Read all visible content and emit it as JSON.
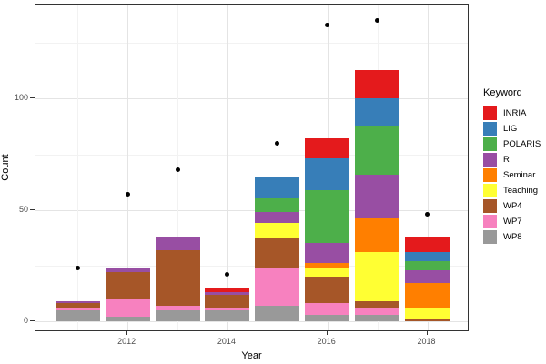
{
  "axes": {
    "x_title": "Year",
    "y_title": "Count"
  },
  "legend": {
    "title": "Keyword",
    "items": [
      {
        "label": "INRIA",
        "color": "#E41A1C"
      },
      {
        "label": "LIG",
        "color": "#377EB8"
      },
      {
        "label": "POLARIS",
        "color": "#4DAF4A"
      },
      {
        "label": "R",
        "color": "#984EA3"
      },
      {
        "label": "Seminar",
        "color": "#FF7F00"
      },
      {
        "label": "Teaching",
        "color": "#FFFF33"
      },
      {
        "label": "WP4",
        "color": "#A65628"
      },
      {
        "label": "WP7",
        "color": "#F781BF"
      },
      {
        "label": "WP8",
        "color": "#999999"
      }
    ]
  },
  "chart_data": {
    "type": "bar",
    "stacked": true,
    "title": "",
    "xlabel": "Year",
    "ylabel": "Count",
    "categories": [
      "2011",
      "2012",
      "2013",
      "2014",
      "2015",
      "2016",
      "2017",
      "2018"
    ],
    "series": [
      {
        "name": "WP8",
        "color": "#999999",
        "values": [
          5,
          2,
          5,
          5,
          7,
          3,
          3,
          0
        ]
      },
      {
        "name": "WP7",
        "color": "#F781BF",
        "values": [
          1,
          8,
          2,
          1,
          17,
          5,
          3,
          0
        ]
      },
      {
        "name": "WP4",
        "color": "#A65628",
        "values": [
          2,
          12,
          25,
          6,
          13,
          12,
          3,
          1
        ]
      },
      {
        "name": "Teaching",
        "color": "#FFFF33",
        "values": [
          0,
          0,
          0,
          0,
          7,
          4,
          22,
          5
        ]
      },
      {
        "name": "Seminar",
        "color": "#FF7F00",
        "values": [
          0,
          0,
          0,
          0,
          0,
          2,
          15,
          11
        ]
      },
      {
        "name": "R",
        "color": "#984EA3",
        "values": [
          1,
          2,
          6,
          1,
          5,
          9,
          20,
          6
        ]
      },
      {
        "name": "POLARIS",
        "color": "#4DAF4A",
        "values": [
          0,
          0,
          0,
          0,
          6,
          24,
          22,
          4
        ]
      },
      {
        "name": "LIG",
        "color": "#377EB8",
        "values": [
          0,
          0,
          0,
          0,
          10,
          14,
          12,
          4
        ]
      },
      {
        "name": "INRIA",
        "color": "#E41A1C",
        "values": [
          0,
          0,
          0,
          2,
          0,
          9,
          13,
          7
        ]
      }
    ],
    "stack_order": "bottom-to-top",
    "bar_totals": [
      9,
      24,
      38,
      15,
      65,
      82,
      113,
      38
    ],
    "points": {
      "name": "black-dots",
      "color": "#000000",
      "values": [
        24,
        57,
        68,
        21,
        80,
        133,
        135,
        48
      ]
    },
    "x_major_tick_labels": [
      "2012",
      "2014",
      "2016",
      "2018"
    ],
    "y_major_ticks": [
      0,
      50,
      100
    ],
    "y_minor_ticks": [
      25,
      75,
      125
    ],
    "ylim": [
      0,
      141
    ],
    "grid": "major+minor",
    "legend_position": "right"
  }
}
